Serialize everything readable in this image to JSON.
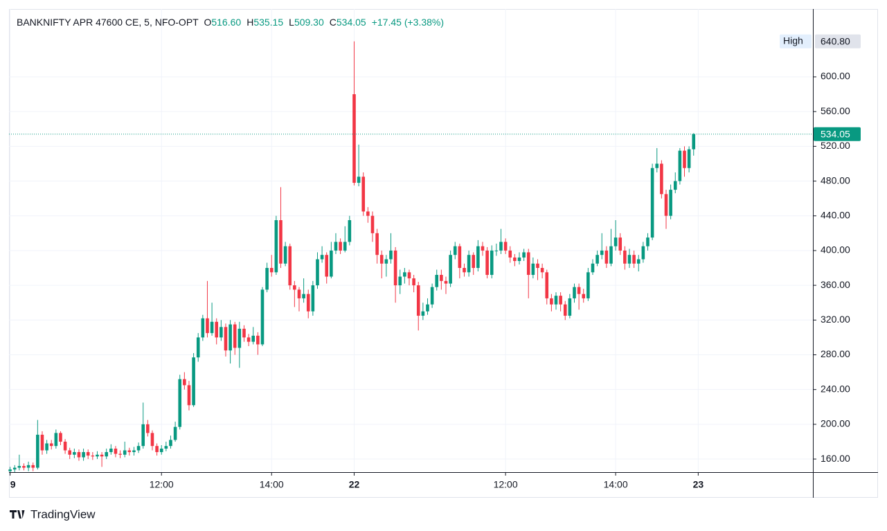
{
  "chart_data": {
    "type": "candlestick",
    "legend": {
      "symbol": "BANKNIFTY APR 47600 CE, 5, NFO-OPT",
      "o_label": "O",
      "o": "516.60",
      "h_label": "H",
      "h": "535.15",
      "l_label": "L",
      "l": "509.30",
      "c_label": "C",
      "c": "534.05",
      "change": "+17.45 (+3.38%)"
    },
    "up_color": "#089981",
    "down_color": "#f23645",
    "ylim": [
      144.9,
      678.1
    ],
    "yticks": [
      {
        "value": 160,
        "label": "160.00"
      },
      {
        "value": 200,
        "label": "200.00"
      },
      {
        "value": 240,
        "label": "240.00"
      },
      {
        "value": 280,
        "label": "280.00"
      },
      {
        "value": 320,
        "label": "320.00"
      },
      {
        "value": 360,
        "label": "360.00"
      },
      {
        "value": 400,
        "label": "400.00"
      },
      {
        "value": 440,
        "label": "440.00"
      },
      {
        "value": 480,
        "label": "480.00"
      },
      {
        "value": 520,
        "label": "520.00"
      },
      {
        "value": 560,
        "label": "560.00"
      },
      {
        "value": 600,
        "label": "600.00"
      }
    ],
    "xlim": [
      -0.24,
      175
    ],
    "xticks": [
      {
        "value": 0,
        "label": "9"
      },
      {
        "value": 33,
        "label": "12:00"
      },
      {
        "value": 57,
        "label": "14:00"
      },
      {
        "value": 75,
        "label": "22"
      },
      {
        "value": 108,
        "label": "12:00"
      },
      {
        "value": 132,
        "label": "14:00"
      },
      {
        "value": 150,
        "label": "23"
      }
    ],
    "grid": true,
    "high_marker": {
      "label": "High",
      "value": 640.8,
      "value_label": "640.80"
    },
    "last_price": {
      "value": 534.05,
      "label": "534.05"
    },
    "watermark": "TradingView",
    "candles": [
      [
        146,
        151,
        143,
        148
      ],
      [
        148,
        153,
        145,
        150
      ],
      [
        150,
        165,
        147,
        152
      ],
      [
        152,
        155,
        147,
        150
      ],
      [
        150,
        157,
        146,
        153
      ],
      [
        153,
        156,
        146,
        150
      ],
      [
        150,
        205,
        148,
        188
      ],
      [
        188,
        192,
        165,
        170
      ],
      [
        170,
        182,
        166,
        178
      ],
      [
        178,
        182,
        171,
        175
      ],
      [
        175,
        194,
        172,
        190
      ],
      [
        190,
        192,
        176,
        180
      ],
      [
        180,
        183,
        166,
        170
      ],
      [
        170,
        173,
        160,
        165
      ],
      [
        165,
        172,
        161,
        168
      ],
      [
        168,
        171,
        158,
        162
      ],
      [
        162,
        172,
        158,
        168
      ],
      [
        168,
        171,
        160,
        164
      ],
      [
        164,
        168,
        159,
        163
      ],
      [
        163,
        169,
        160,
        165
      ],
      [
        165,
        168,
        151,
        163
      ],
      [
        163,
        172,
        160,
        168
      ],
      [
        168,
        177,
        165,
        172
      ],
      [
        172,
        175,
        162,
        166
      ],
      [
        166,
        170,
        161,
        165
      ],
      [
        165,
        180,
        162,
        170
      ],
      [
        170,
        173,
        164,
        168
      ],
      [
        168,
        174,
        164,
        170
      ],
      [
        170,
        179,
        167,
        175
      ],
      [
        175,
        225,
        172,
        200
      ],
      [
        200,
        205,
        186,
        190
      ],
      [
        190,
        193,
        170,
        175
      ],
      [
        175,
        178,
        164,
        168
      ],
      [
        168,
        176,
        165,
        172
      ],
      [
        172,
        180,
        169,
        175
      ],
      [
        175,
        187,
        172,
        182
      ],
      [
        182,
        203,
        180,
        197
      ],
      [
        197,
        257,
        194,
        252
      ],
      [
        252,
        260,
        240,
        245
      ],
      [
        245,
        250,
        216,
        222
      ],
      [
        222,
        282,
        220,
        277
      ],
      [
        277,
        305,
        272,
        300
      ],
      [
        300,
        326,
        296,
        322
      ],
      [
        322,
        365,
        300,
        305
      ],
      [
        305,
        340,
        302,
        318
      ],
      [
        318,
        322,
        292,
        300
      ],
      [
        300,
        320,
        296,
        312
      ],
      [
        312,
        316,
        278,
        285
      ],
      [
        285,
        320,
        270,
        315
      ],
      [
        315,
        318,
        280,
        288
      ],
      [
        288,
        318,
        265,
        310
      ],
      [
        310,
        314,
        295,
        300
      ],
      [
        300,
        304,
        290,
        295
      ],
      [
        295,
        312,
        292,
        302
      ],
      [
        302,
        306,
        280,
        292
      ],
      [
        292,
        358,
        290,
        355
      ],
      [
        355,
        386,
        352,
        380
      ],
      [
        380,
        395,
        370,
        375
      ],
      [
        375,
        440,
        372,
        435
      ],
      [
        435,
        473,
        380,
        385
      ],
      [
        385,
        410,
        382,
        405
      ],
      [
        405,
        408,
        355,
        360
      ],
      [
        360,
        365,
        335,
        355
      ],
      [
        355,
        358,
        330,
        345
      ],
      [
        345,
        368,
        340,
        350
      ],
      [
        350,
        355,
        322,
        330
      ],
      [
        330,
        365,
        325,
        360
      ],
      [
        360,
        398,
        356,
        390
      ],
      [
        390,
        405,
        386,
        395
      ],
      [
        395,
        398,
        362,
        370
      ],
      [
        370,
        410,
        368,
        400
      ],
      [
        400,
        420,
        396,
        410
      ],
      [
        410,
        414,
        396,
        400
      ],
      [
        400,
        428,
        398,
        410
      ],
      [
        410,
        440,
        406,
        435
      ],
      [
        580,
        640.8,
        475,
        478
      ],
      [
        478,
        522,
        474,
        485
      ],
      [
        485,
        490,
        440,
        445
      ],
      [
        445,
        450,
        432,
        440
      ],
      [
        440,
        445,
        410,
        420
      ],
      [
        420,
        425,
        385,
        395
      ],
      [
        395,
        400,
        368,
        385
      ],
      [
        385,
        395,
        370,
        390
      ],
      [
        390,
        420,
        385,
        400
      ],
      [
        400,
        404,
        340,
        360
      ],
      [
        360,
        378,
        350,
        370
      ],
      [
        370,
        380,
        362,
        375
      ],
      [
        375,
        378,
        360,
        368
      ],
      [
        368,
        372,
        352,
        360
      ],
      [
        360,
        364,
        308,
        325
      ],
      [
        325,
        340,
        320,
        330
      ],
      [
        330,
        345,
        326,
        338
      ],
      [
        338,
        362,
        334,
        358
      ],
      [
        358,
        378,
        354,
        372
      ],
      [
        372,
        378,
        355,
        365
      ],
      [
        365,
        370,
        350,
        362
      ],
      [
        362,
        400,
        358,
        395
      ],
      [
        395,
        410,
        390,
        405
      ],
      [
        405,
        408,
        368,
        380
      ],
      [
        380,
        385,
        370,
        375
      ],
      [
        375,
        400,
        370,
        395
      ],
      [
        395,
        398,
        372,
        380
      ],
      [
        380,
        412,
        376,
        405
      ],
      [
        405,
        410,
        394,
        400
      ],
      [
        400,
        404,
        368,
        372
      ],
      [
        372,
        406,
        368,
        400
      ],
      [
        400,
        408,
        394,
        400
      ],
      [
        400,
        425,
        396,
        410
      ],
      [
        410,
        414,
        396,
        400
      ],
      [
        400,
        405,
        386,
        392
      ],
      [
        392,
        396,
        382,
        388
      ],
      [
        388,
        398,
        384,
        392
      ],
      [
        392,
        402,
        388,
        398
      ],
      [
        398,
        402,
        345,
        372
      ],
      [
        372,
        392,
        368,
        385
      ],
      [
        385,
        390,
        366,
        380
      ],
      [
        380,
        385,
        368,
        375
      ],
      [
        375,
        378,
        338,
        345
      ],
      [
        345,
        350,
        330,
        338
      ],
      [
        338,
        352,
        332,
        348
      ],
      [
        348,
        352,
        330,
        338
      ],
      [
        338,
        342,
        320,
        325
      ],
      [
        325,
        350,
        322,
        345
      ],
      [
        345,
        362,
        340,
        358
      ],
      [
        358,
        362,
        332,
        350
      ],
      [
        350,
        356,
        340,
        345
      ],
      [
        345,
        380,
        342,
        375
      ],
      [
        375,
        390,
        372,
        385
      ],
      [
        385,
        400,
        382,
        395
      ],
      [
        395,
        420,
        390,
        400
      ],
      [
        400,
        405,
        380,
        385
      ],
      [
        385,
        425,
        382,
        405
      ],
      [
        405,
        435,
        400,
        415
      ],
      [
        415,
        420,
        395,
        400
      ],
      [
        400,
        405,
        378,
        385
      ],
      [
        385,
        402,
        380,
        395
      ],
      [
        395,
        400,
        380,
        385
      ],
      [
        385,
        395,
        376,
        390
      ],
      [
        390,
        410,
        386,
        405
      ],
      [
        405,
        420,
        400,
        415
      ],
      [
        415,
        500,
        412,
        495
      ],
      [
        495,
        518,
        490,
        500
      ],
      [
        500,
        504,
        460,
        465
      ],
      [
        465,
        470,
        425,
        440
      ],
      [
        440,
        476,
        436,
        470
      ],
      [
        470,
        490,
        466,
        480
      ],
      [
        480,
        518,
        476,
        515
      ],
      [
        515,
        520,
        485,
        495
      ],
      [
        495,
        520,
        490,
        516.6
      ],
      [
        516.6,
        535.15,
        509.3,
        534.05
      ]
    ]
  }
}
